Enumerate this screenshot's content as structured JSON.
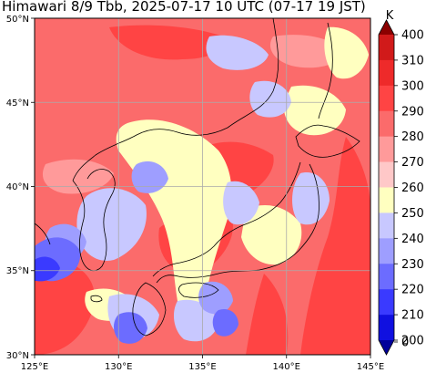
{
  "title": "Himawari 8/9 Tbb, 2025-07-17 10 UTC (07-17 19 JST)",
  "map": {
    "lon_range": [
      125,
      145
    ],
    "lat_range": [
      30,
      50
    ],
    "lon_ticks": [
      "125°E",
      "130°E",
      "135°E",
      "140°E",
      "145°E"
    ],
    "lat_ticks": [
      "50°N",
      "45°N",
      "40°N",
      "35°N",
      "30°N"
    ],
    "grid": true
  },
  "colorbar": {
    "unit": "K",
    "levels": [
      "400",
      "310",
      "300",
      "290",
      "280",
      "270",
      "260",
      "250",
      "240",
      "230",
      "220",
      "210",
      "200",
      "0"
    ],
    "colors": [
      "#8b0000",
      "#d11a1a",
      "#ee2a2a",
      "#ff4444",
      "#fb6b6b",
      "#ff9a9a",
      "#ffc8c8",
      "#ffffc0",
      "#c8c8ff",
      "#9e9eff",
      "#6c6cff",
      "#3a3aff",
      "#1010e0",
      "#00009a"
    ]
  },
  "colors": {
    "land_outline": "#000000",
    "grid_line": "#aaaaaa",
    "base_warm": "#fb6b6b"
  }
}
